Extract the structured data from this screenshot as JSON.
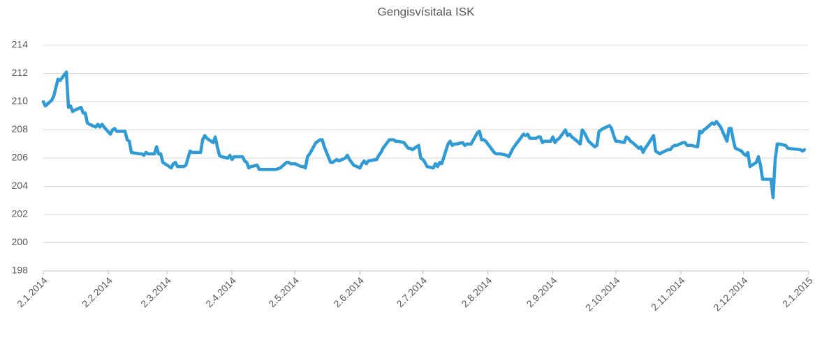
{
  "chart_data": {
    "type": "line",
    "title": "Gengisvísitala ISK",
    "color": "#2e9bd6",
    "x": [
      "2.1.2014",
      "3.1.2014",
      "6.1.2014",
      "7.1.2014",
      "8.1.2014",
      "9.1.2014",
      "10.1.2014",
      "13.1.2014",
      "14.1.2014",
      "15.1.2014",
      "16.1.2014",
      "17.1.2014",
      "20.1.2014",
      "21.1.2014",
      "22.1.2014",
      "23.1.2014",
      "24.1.2014",
      "27.1.2014",
      "28.1.2014",
      "29.1.2014",
      "30.1.2014",
      "31.1.2014",
      "3.2.2014",
      "4.2.2014",
      "5.2.2014",
      "6.2.2014",
      "7.2.2014",
      "10.2.2014",
      "11.2.2014",
      "12.2.2014",
      "13.2.2014",
      "17.2.2014",
      "18.2.2014",
      "19.2.2014",
      "20.2.2014",
      "21.2.2014",
      "24.2.2014",
      "25.2.2014",
      "26.2.2014",
      "27.2.2014",
      "28.2.2014",
      "3.3.2014",
      "4.3.2014",
      "5.3.2014",
      "6.3.2014",
      "7.3.2014",
      "10.3.2014",
      "11.3.2014",
      "12.3.2014",
      "13.3.2014",
      "14.3.2014",
      "17.3.2014",
      "18.3.2014",
      "19.3.2014",
      "20.3.2014",
      "21.3.2014",
      "24.3.2014",
      "25.3.2014",
      "26.3.2014",
      "27.3.2014",
      "28.3.2014",
      "31.3.2014",
      "1.4.2014",
      "2.4.2014",
      "3.4.2014",
      "4.4.2014",
      "7.4.2014",
      "8.4.2014",
      "9.4.2014",
      "10.4.2014",
      "11.4.2014",
      "14.4.2014",
      "15.4.2014",
      "16.4.2014",
      "22.4.2014",
      "23.4.2014",
      "25.4.2014",
      "28.4.2014",
      "29.4.2014",
      "30.4.2014",
      "2.5.2014",
      "5.5.2014",
      "6.5.2014",
      "7.5.2014",
      "8.5.2014",
      "9.5.2014",
      "12.5.2014",
      "13.5.2014",
      "14.5.2014",
      "15.5.2014",
      "16.5.2014",
      "19.5.2014",
      "20.5.2014",
      "21.5.2014",
      "22.5.2014",
      "23.5.2014",
      "26.5.2014",
      "27.5.2014",
      "28.5.2014",
      "30.5.2014",
      "2.6.2014",
      "3.6.2014",
      "4.6.2014",
      "5.6.2014",
      "6.6.2014",
      "10.6.2014",
      "11.6.2014",
      "12.6.2014",
      "13.6.2014",
      "16.6.2014",
      "18.6.2014",
      "19.6.2014",
      "20.6.2014",
      "23.6.2014",
      "24.6.2014",
      "25.6.2014",
      "26.6.2014",
      "27.6.2014",
      "30.6.2014",
      "1.7.2014",
      "2.7.2014",
      "3.7.2014",
      "4.7.2014",
      "7.7.2014",
      "8.7.2014",
      "9.7.2014",
      "10.7.2014",
      "11.7.2014",
      "14.7.2014",
      "15.7.2014",
      "16.7.2014",
      "17.7.2014",
      "18.7.2014",
      "21.7.2014",
      "22.7.2014",
      "23.7.2014",
      "24.7.2014",
      "25.7.2014",
      "28.7.2014",
      "29.7.2014",
      "30.7.2014",
      "31.7.2014",
      "1.8.2014",
      "5.8.2014",
      "6.8.2014",
      "7.8.2014",
      "8.8.2014",
      "11.8.2014",
      "12.8.2014",
      "13.8.2014",
      "14.8.2014",
      "15.8.2014",
      "18.8.2014",
      "19.8.2014",
      "20.8.2014",
      "21.8.2014",
      "22.8.2014",
      "25.8.2014",
      "26.8.2014",
      "27.8.2014",
      "28.8.2014",
      "29.8.2014",
      "1.9.2014",
      "2.9.2014",
      "3.9.2014",
      "4.9.2014",
      "5.9.2014",
      "8.9.2014",
      "9.9.2014",
      "10.9.2014",
      "11.9.2014",
      "12.9.2014",
      "15.9.2014",
      "16.9.2014",
      "17.9.2014",
      "18.9.2014",
      "19.9.2014",
      "22.9.2014",
      "23.9.2014",
      "24.9.2014",
      "25.9.2014",
      "26.9.2014",
      "29.9.2014",
      "30.9.2014",
      "1.10.2014",
      "2.10.2014",
      "3.10.2014",
      "6.10.2014",
      "7.10.2014",
      "8.10.2014",
      "9.10.2014",
      "10.10.2014",
      "13.10.2014",
      "14.10.2014",
      "15.10.2014",
      "16.10.2014",
      "17.10.2014",
      "20.10.2014",
      "21.10.2014",
      "22.10.2014",
      "23.10.2014",
      "24.10.2014",
      "27.10.2014",
      "28.10.2014",
      "29.10.2014",
      "30.10.2014",
      "31.10.2014",
      "3.11.2014",
      "4.11.2014",
      "5.11.2014",
      "6.11.2014",
      "7.11.2014",
      "10.11.2014",
      "11.11.2014",
      "12.11.2014",
      "13.11.2014",
      "14.11.2014",
      "17.11.2014",
      "18.11.2014",
      "19.11.2014",
      "20.11.2014",
      "21.11.2014",
      "24.11.2014",
      "25.11.2014",
      "26.11.2014",
      "27.11.2014",
      "28.11.2014",
      "1.12.2014",
      "2.12.2014",
      "3.12.2014",
      "4.12.2014",
      "5.12.2014",
      "8.12.2014",
      "9.12.2014",
      "10.12.2014",
      "11.12.2014",
      "12.12.2014",
      "15.12.2014",
      "16.12.2014",
      "17.12.2014",
      "18.12.2014",
      "19.12.2014",
      "22.12.2014",
      "23.12.2014",
      "29.12.2014",
      "30.12.2014",
      "31.12.2014"
    ],
    "values": [
      210.0,
      209.7,
      210.1,
      210.4,
      211.0,
      211.6,
      211.5,
      212.1,
      209.6,
      209.7,
      209.3,
      209.4,
      209.6,
      209.2,
      209.2,
      208.5,
      208.4,
      208.2,
      208.4,
      208.2,
      208.4,
      208.2,
      207.7,
      208.0,
      208.1,
      207.9,
      207.9,
      207.9,
      207.3,
      207.2,
      206.4,
      206.3,
      206.3,
      206.2,
      206.4,
      206.3,
      206.3,
      206.8,
      206.3,
      206.3,
      205.7,
      205.4,
      205.3,
      205.6,
      205.7,
      205.4,
      205.4,
      205.5,
      206.0,
      206.5,
      206.4,
      206.4,
      206.4,
      207.3,
      207.6,
      207.4,
      207.1,
      207.5,
      206.8,
      206.2,
      206.1,
      206.0,
      206.2,
      205.9,
      206.1,
      206.1,
      206.1,
      205.8,
      205.7,
      205.3,
      205.4,
      205.5,
      205.2,
      205.2,
      205.2,
      205.2,
      205.3,
      205.7,
      205.7,
      205.6,
      205.6,
      205.4,
      205.4,
      205.3,
      206.1,
      206.3,
      207.1,
      207.2,
      207.3,
      207.3,
      206.8,
      205.7,
      205.7,
      205.8,
      205.9,
      205.8,
      206.0,
      206.2,
      205.9,
      205.5,
      205.3,
      205.6,
      205.8,
      205.6,
      205.8,
      205.9,
      206.2,
      206.4,
      206.7,
      207.3,
      207.3,
      207.2,
      207.2,
      207.1,
      206.9,
      206.7,
      206.7,
      206.6,
      206.9,
      206.0,
      205.9,
      205.7,
      205.4,
      205.3,
      205.6,
      205.4,
      205.7,
      205.6,
      207.0,
      207.2,
      206.9,
      207.0,
      207.0,
      207.1,
      206.9,
      207.0,
      207.0,
      207.0,
      207.8,
      207.9,
      207.3,
      207.3,
      207.2,
      206.4,
      206.3,
      206.3,
      206.3,
      206.2,
      206.1,
      206.4,
      206.7,
      206.9,
      207.5,
      207.7,
      207.6,
      207.7,
      207.4,
      207.4,
      207.5,
      207.5,
      207.1,
      207.2,
      207.2,
      207.5,
      207.1,
      207.3,
      207.4,
      208.0,
      207.6,
      207.7,
      207.5,
      207.4,
      207.0,
      208.0,
      207.8,
      207.5,
      207.2,
      206.8,
      206.9,
      207.9,
      208.0,
      208.1,
      208.3,
      208.1,
      207.6,
      207.2,
      207.2,
      207.1,
      207.5,
      207.4,
      207.2,
      207.1,
      206.7,
      206.8,
      206.4,
      206.7,
      206.9,
      207.6,
      206.5,
      206.4,
      206.3,
      206.4,
      206.6,
      206.6,
      206.8,
      206.9,
      206.9,
      207.1,
      207.1,
      206.9,
      206.9,
      206.9,
      206.8,
      207.9,
      207.8,
      208.0,
      208.1,
      208.5,
      208.4,
      208.6,
      208.4,
      208.2,
      207.2,
      208.1,
      208.1,
      207.3,
      206.7,
      206.5,
      206.3,
      206.2,
      206.4,
      205.4,
      205.7,
      206.1,
      205.5,
      204.5,
      204.5,
      204.5,
      203.2,
      205.9,
      207.0,
      207.0,
      206.9,
      206.7,
      206.6,
      206.5,
      206.6
    ],
    "xlim": [
      "2.1.2014",
      "2.1.2015"
    ],
    "xticks": [
      "2.1.2014",
      "2.2.2014",
      "2.3.2014",
      "2.4.2014",
      "2.5.2014",
      "2.6.2014",
      "2.7.2014",
      "2.8.2014",
      "2.9.2014",
      "2.10.2014",
      "2.11.2014",
      "2.12.2014",
      "2.1.2015"
    ],
    "ylim": [
      198,
      214
    ],
    "yticks": [
      198,
      200,
      202,
      204,
      206,
      208,
      210,
      212,
      214
    ],
    "grid": true
  }
}
